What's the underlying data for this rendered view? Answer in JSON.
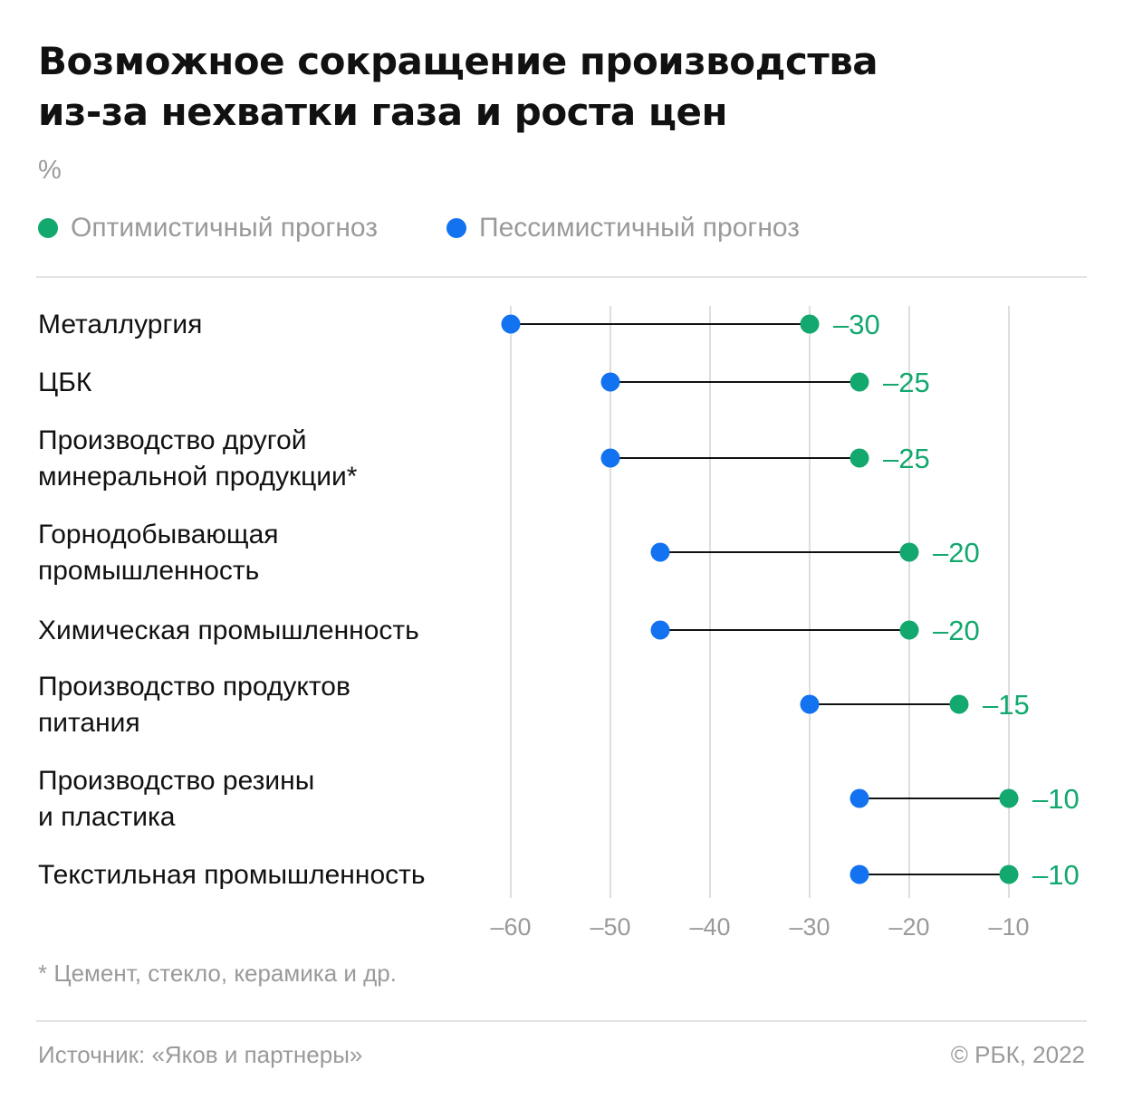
{
  "title_lines": [
    "Возможное сокращение производства",
    "из-за нехватки газа и роста цен"
  ],
  "unit": "%",
  "legend": [
    {
      "label": "Оптимистичный прогноз",
      "color": "#12a86e"
    },
    {
      "label": "Пессимистичный прогноз",
      "color": "#1272f0"
    }
  ],
  "chart_data": {
    "type": "dumbbell",
    "title": "Возможное сокращение производства из-за нехватки газа и роста цен",
    "unit": "%",
    "xlim": [
      -60,
      -10
    ],
    "x_ticks": [
      -60,
      -50,
      -40,
      -30,
      -20,
      -10
    ],
    "x_tick_labels": [
      "–60",
      "–50",
      "–40",
      "–30",
      "–20",
      "–10"
    ],
    "grid": true,
    "legend_position": "top-left",
    "categories": [
      {
        "label_lines": [
          "Металлургия"
        ],
        "optimistic": -30,
        "pessimistic": -60,
        "value_label": "–30"
      },
      {
        "label_lines": [
          "ЦБК"
        ],
        "optimistic": -25,
        "pessimistic": -50,
        "value_label": "–25"
      },
      {
        "label_lines": [
          "Производство другой",
          "минеральной продукции*"
        ],
        "optimistic": -25,
        "pessimistic": -50,
        "value_label": "–25"
      },
      {
        "label_lines": [
          "Горнодобывающая",
          "промышленность"
        ],
        "optimistic": -20,
        "pessimistic": -45,
        "value_label": "–20"
      },
      {
        "label_lines": [
          "Химическая промышленность"
        ],
        "optimistic": -20,
        "pessimistic": -45,
        "value_label": "–20"
      },
      {
        "label_lines": [
          "Производство продуктов",
          "питания"
        ],
        "optimistic": -15,
        "pessimistic": -30,
        "value_label": "–15"
      },
      {
        "label_lines": [
          "Производство резины",
          "и пластика"
        ],
        "optimistic": -10,
        "pessimistic": -25,
        "value_label": "–10"
      },
      {
        "label_lines": [
          "Текстильная промышленность"
        ],
        "optimistic": -10,
        "pessimistic": -25,
        "value_label": "–10"
      }
    ],
    "series": [
      {
        "name": "Оптимистичный прогноз",
        "key": "optimistic",
        "color": "#12a86e"
      },
      {
        "name": "Пессимистичный прогноз",
        "key": "pessimistic",
        "color": "#1272f0"
      }
    ]
  },
  "footnote": "* Цемент, стекло, керамика и др.",
  "source": "Источник: «Яков и партнеры»",
  "copyright": "© РБК, 2022"
}
